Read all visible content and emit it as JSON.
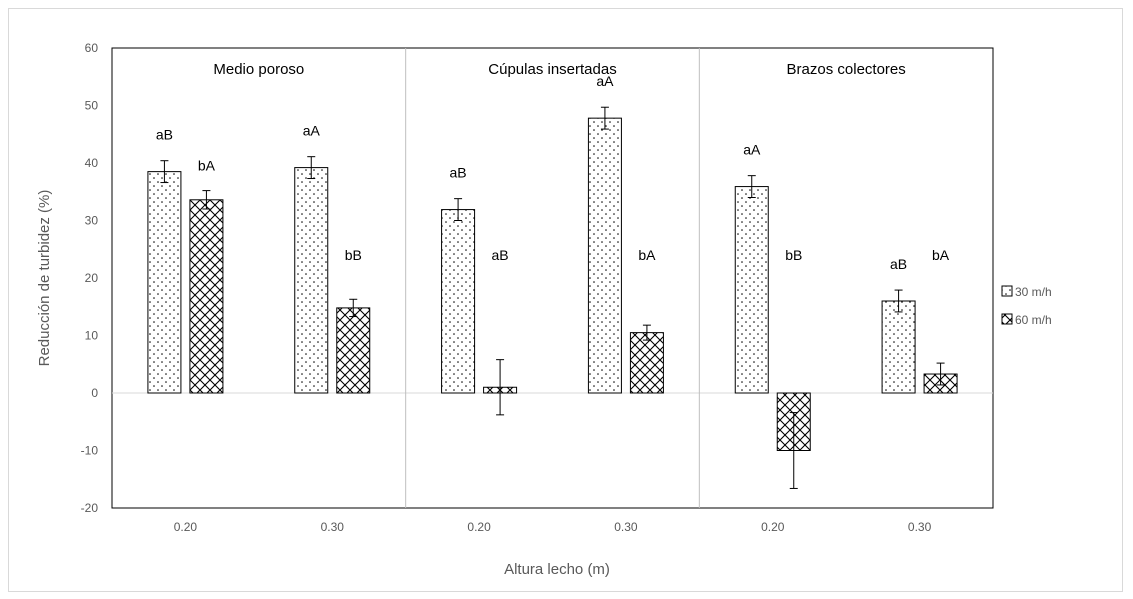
{
  "chart_data": {
    "type": "bar",
    "xlabel": "Altura lecho (m)",
    "ylabel": "Reducción de turbidez (%)",
    "ylim": [
      -20,
      60
    ],
    "yticks": [
      -20,
      -10,
      0,
      10,
      20,
      30,
      40,
      50,
      60
    ],
    "grid": false,
    "legend_position": "right",
    "legend": [
      {
        "name": "30 m/h",
        "pattern": "dots"
      },
      {
        "name": "60 m/h",
        "pattern": "crosshatch"
      }
    ],
    "panels": [
      {
        "title": "Medio poroso",
        "categories": [
          "0.20",
          "0.30"
        ],
        "series": [
          {
            "name": "30 m/h",
            "values": [
              38.5,
              39.2
            ],
            "errors": [
              1.9,
              1.9
            ],
            "labels": [
              "aB",
              "aA"
            ]
          },
          {
            "name": "60 m/h",
            "values": [
              33.6,
              14.8
            ],
            "errors": [
              1.6,
              1.5
            ],
            "labels": [
              "bA",
              "bB"
            ]
          }
        ]
      },
      {
        "title": "Cúpulas insertadas",
        "categories": [
          "0.20",
          "0.30"
        ],
        "series": [
          {
            "name": "30 m/h",
            "values": [
              31.9,
              47.8
            ],
            "errors": [
              1.9,
              1.9
            ],
            "labels": [
              "aB",
              "aA"
            ]
          },
          {
            "name": "60 m/h",
            "values": [
              1.0,
              10.5
            ],
            "errors": [
              4.8,
              1.3
            ],
            "labels": [
              "aB",
              "bA"
            ]
          }
        ]
      },
      {
        "title": "Brazos colectores",
        "categories": [
          "0.20",
          "0.30"
        ],
        "series": [
          {
            "name": "30 m/h",
            "values": [
              35.9,
              16.0
            ],
            "errors": [
              1.9,
              1.9
            ],
            "labels": [
              "aA",
              "aB"
            ]
          },
          {
            "name": "60 m/h",
            "values": [
              -10.0,
              3.3
            ],
            "errors": [
              6.6,
              1.9
            ],
            "labels": [
              "bB",
              "bA"
            ]
          }
        ]
      }
    ]
  }
}
